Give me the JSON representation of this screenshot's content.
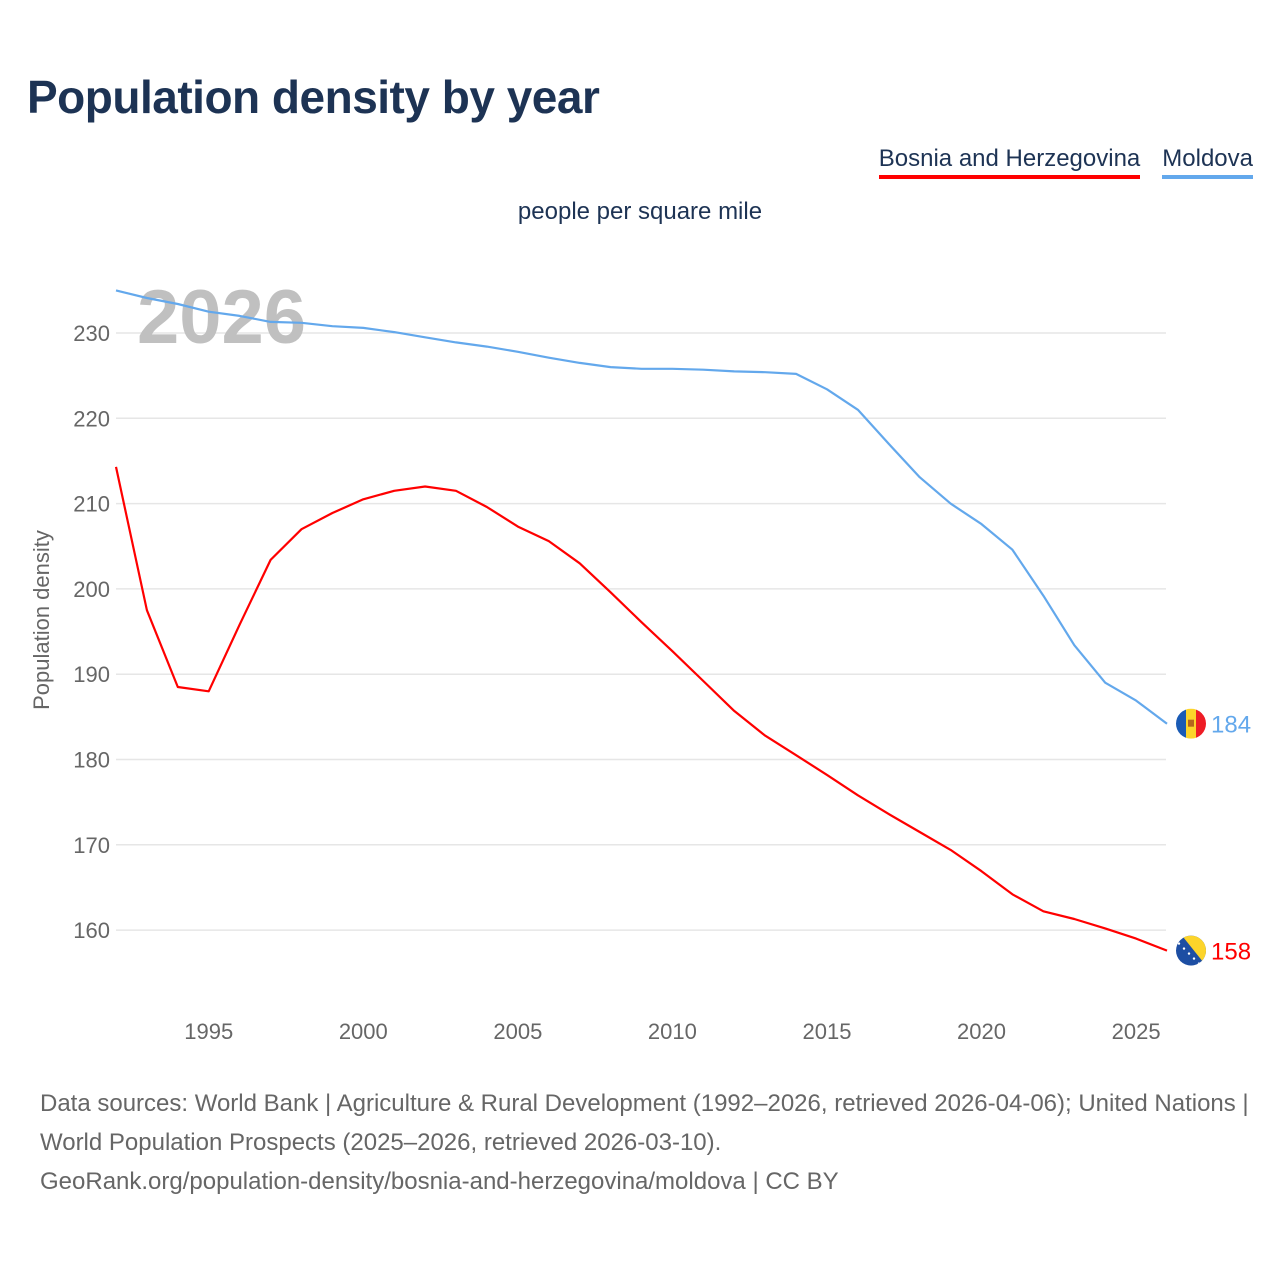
{
  "chart_data": {
    "type": "line",
    "title": "Population density by year",
    "subtitle": "people per square mile",
    "ylabel": "Population density",
    "xlabel": "",
    "year_watermark": "2026",
    "xlim": [
      1992,
      2026
    ],
    "ylim": [
      151,
      236
    ],
    "x_ticks": [
      1995,
      2000,
      2005,
      2010,
      2015,
      2020,
      2025
    ],
    "y_ticks": [
      160,
      170,
      180,
      190,
      200,
      210,
      220,
      230
    ],
    "grid": true,
    "legend_position": "top-right",
    "x": [
      1992,
      1993,
      1994,
      1995,
      1996,
      1997,
      1998,
      1999,
      2000,
      2001,
      2002,
      2003,
      2004,
      2005,
      2006,
      2007,
      2008,
      2009,
      2010,
      2011,
      2012,
      2013,
      2014,
      2015,
      2016,
      2017,
      2018,
      2019,
      2020,
      2021,
      2022,
      2023,
      2024,
      2025,
      2026
    ],
    "series": [
      {
        "name": "Bosnia and Herzegovina",
        "color": "#ff0000",
        "end_label": "158",
        "flag": "bosnia-flag",
        "values": [
          214.3,
          197.5,
          188.5,
          188.0,
          195.8,
          203.4,
          207.0,
          208.9,
          210.5,
          211.5,
          212.0,
          211.5,
          209.6,
          207.3,
          205.6,
          203.0,
          199.6,
          196.1,
          192.7,
          189.2,
          185.7,
          182.8,
          180.5,
          178.2,
          175.8,
          173.6,
          171.5,
          169.4,
          166.9,
          164.2,
          162.2,
          161.3,
          160.2,
          159.0,
          157.6
        ]
      },
      {
        "name": "Moldova",
        "color": "#63a8ec",
        "end_label": "184",
        "flag": "moldova-flag",
        "values": [
          235.0,
          234.1,
          233.4,
          232.5,
          232.0,
          231.3,
          231.2,
          230.8,
          230.6,
          230.1,
          229.5,
          228.9,
          228.4,
          227.8,
          227.1,
          226.5,
          226.0,
          225.8,
          225.8,
          225.7,
          225.5,
          225.4,
          225.2,
          223.4,
          221.0,
          217.0,
          213.1,
          210.0,
          207.6,
          204.6,
          199.2,
          193.4,
          189.0,
          186.9,
          184.2
        ]
      }
    ]
  },
  "footer": {
    "sources": "Data sources: World Bank | Agriculture & Rural Development (1992–2026, retrieved 2026-04-06); United Nations | World Population Prospects (2025–2026, retrieved 2026-03-10).",
    "credit": "GeoRank.org/population-density/bosnia-and-herzegovina/moldova | CC BY"
  }
}
